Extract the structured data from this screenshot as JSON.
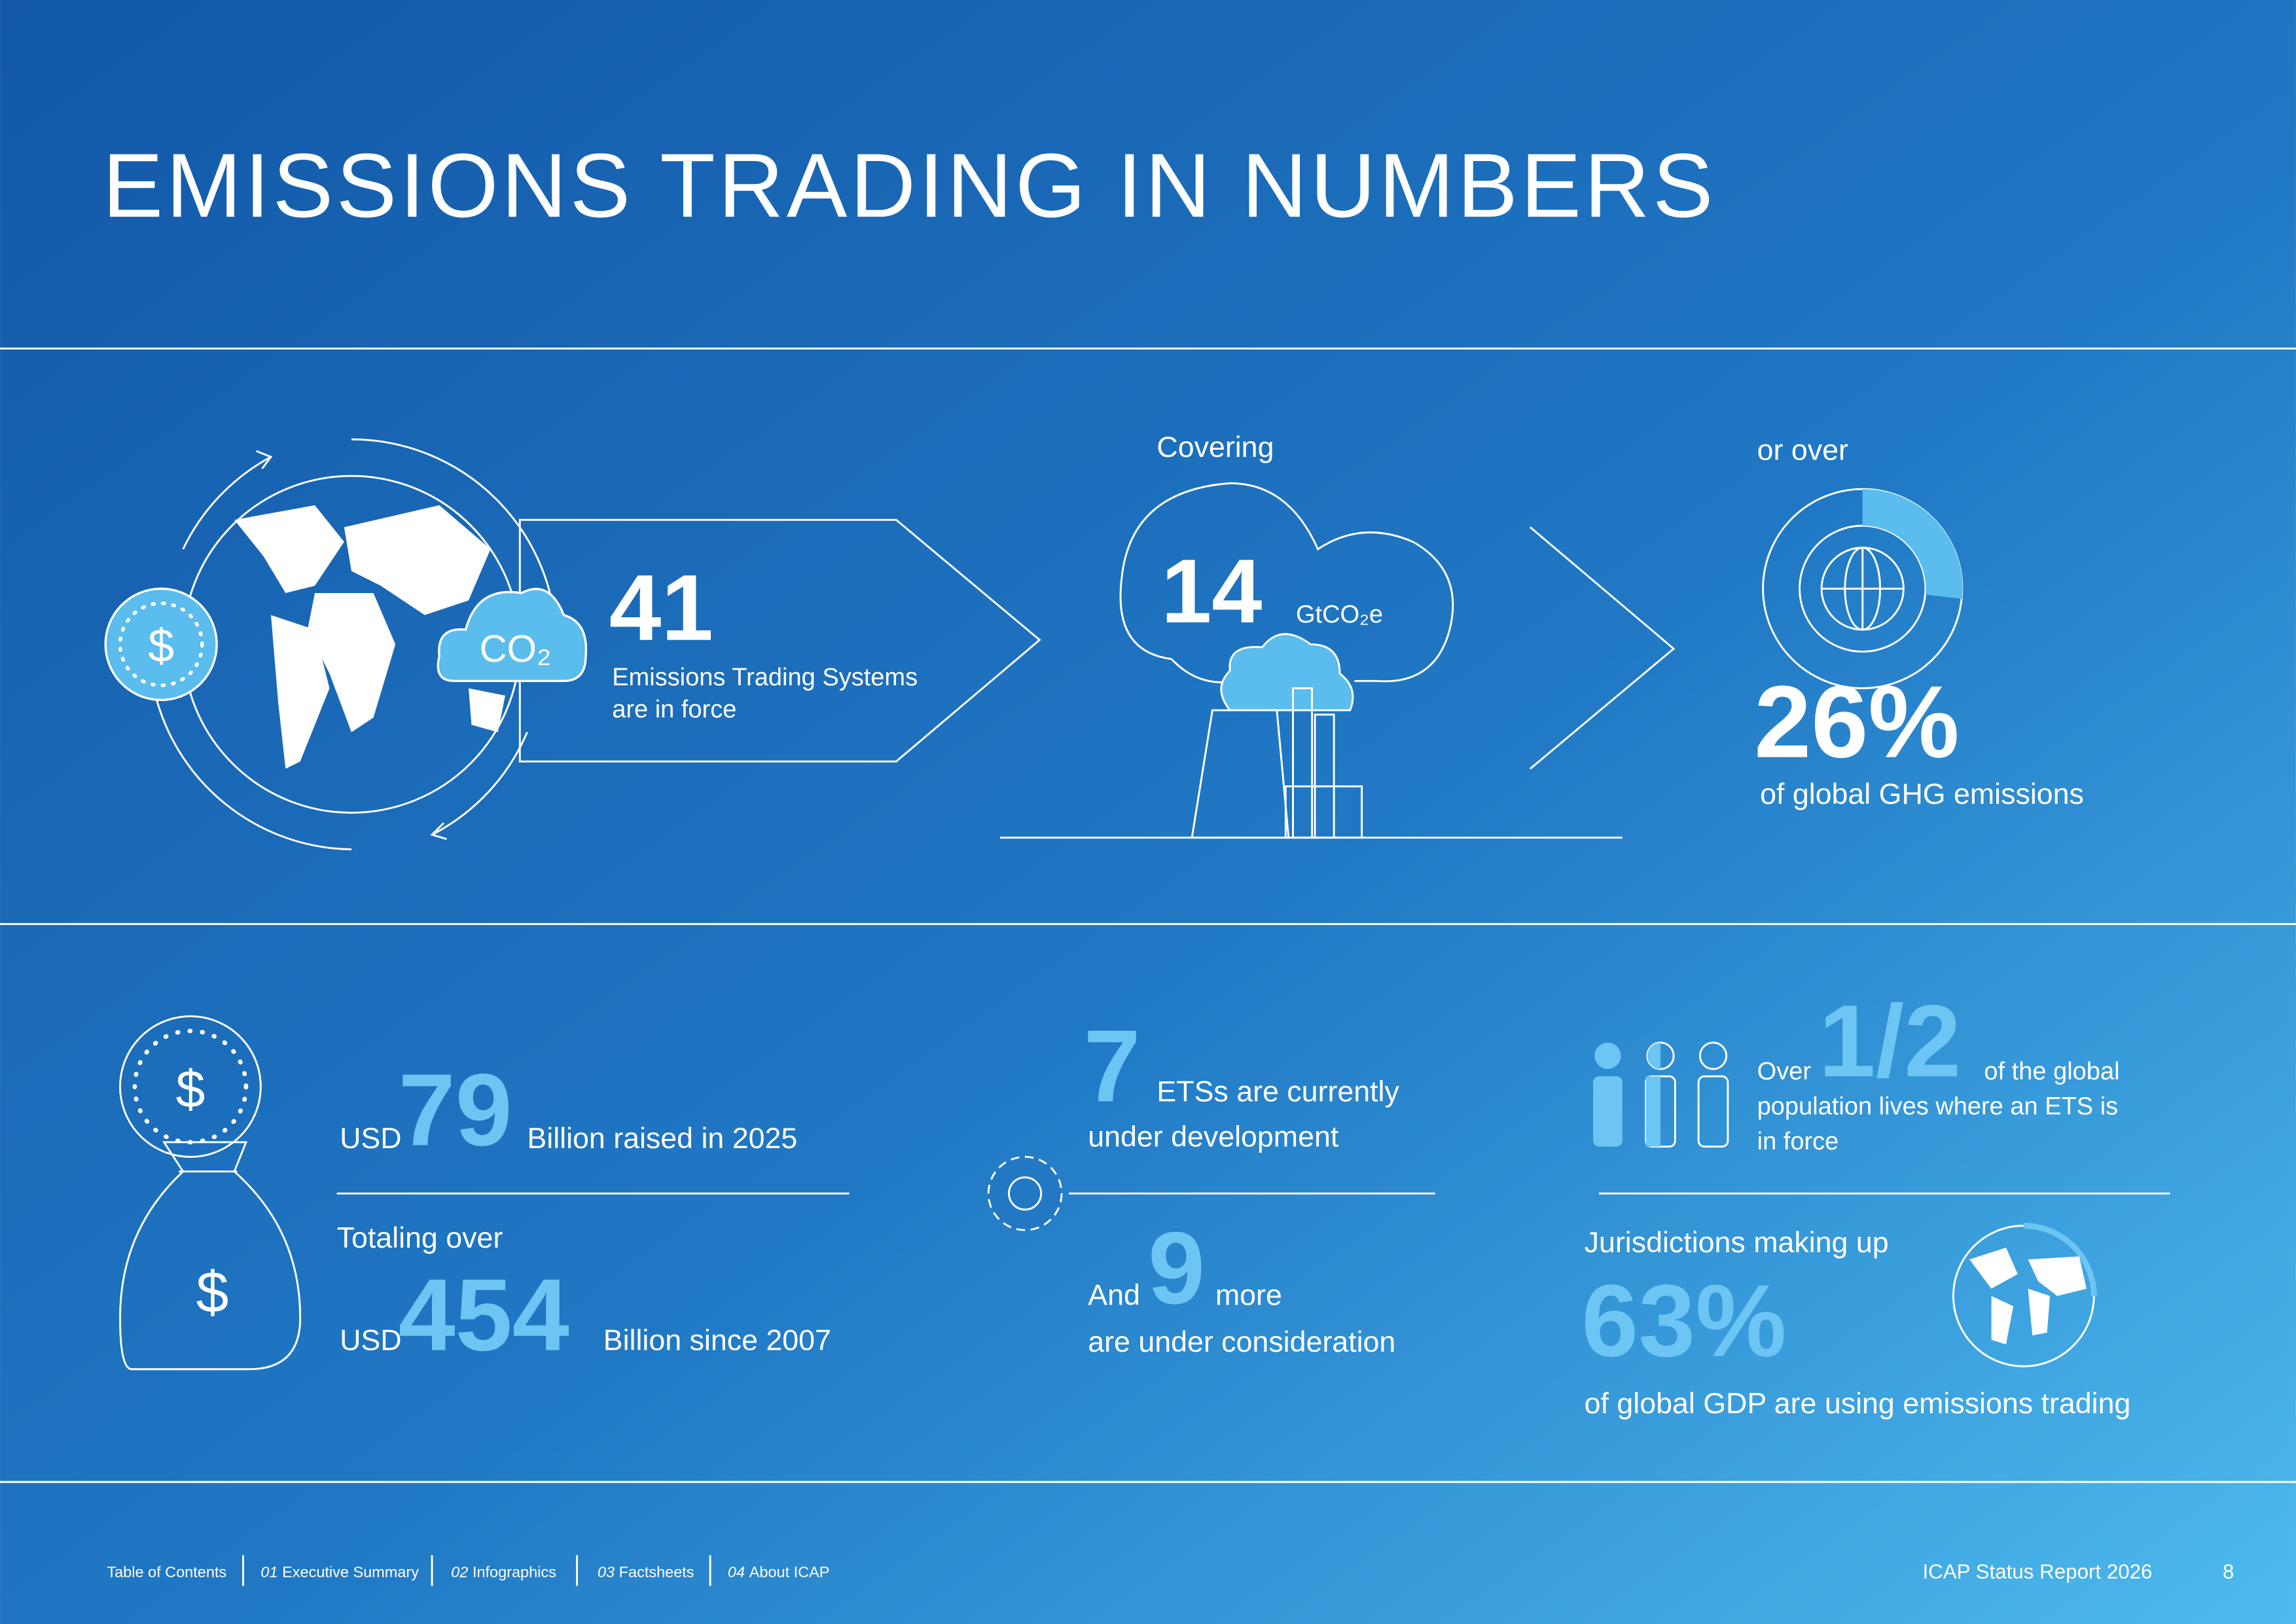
{
  "header": {
    "title": "EMISSIONS TRADING IN NUMBERS"
  },
  "icons": {
    "dollar": "$",
    "co2": "CO₂"
  },
  "ets": {
    "value": "41",
    "label_lines": [
      "Emissions Trading Systems",
      "are in force"
    ]
  },
  "coverage": {
    "intro": "Covering",
    "value": "14",
    "unit": "GtCO₂e"
  },
  "share": {
    "intro": "or over",
    "value": "26%",
    "label": "of global GHG emissions"
  },
  "revenue": {
    "currency": "USD",
    "value": "79",
    "label": "Billion raised in 2025",
    "total_intro": "Totaling over",
    "total_currency": "USD",
    "total_value": "454",
    "total_label": "Billion since 2007"
  },
  "pipeline": {
    "value": "7",
    "label_lines": [
      "ETSs are currently",
      "under development"
    ],
    "more_intro": "And",
    "more_value": "9",
    "more_label": "more",
    "more_line2": "are under consideration"
  },
  "population": {
    "intro": "Over",
    "value": "1/2",
    "label_lines": [
      "of the global",
      "population lives where an ETS is",
      "in force"
    ]
  },
  "gdp": {
    "intro": "Jurisdictions making up",
    "value": "63%",
    "label": "of global GDP are using emissions trading"
  },
  "footer": {
    "nav": [
      {
        "label": "Table of Contents"
      },
      {
        "number": "01",
        "label": "Executive Summary"
      },
      {
        "number": "02",
        "label": "Infographics"
      },
      {
        "number": "03",
        "label": "Factsheets"
      },
      {
        "number": "04",
        "label": "About ICAP"
      }
    ],
    "report": "ICAP Status Report 2026",
    "page": "8"
  }
}
